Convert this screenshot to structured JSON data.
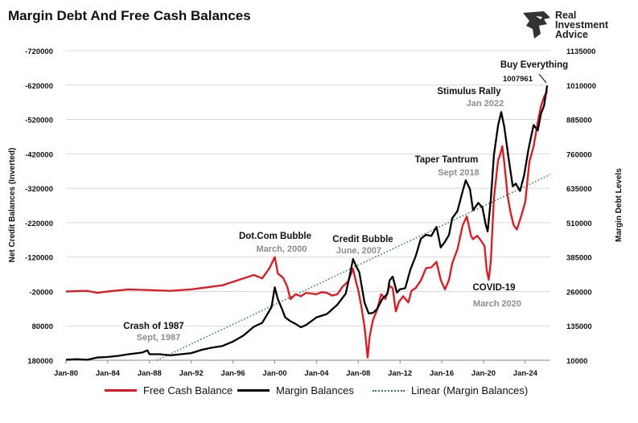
{
  "title": "Margin Debt And Free Cash Balances",
  "logo": {
    "icon": "eagle-head-icon",
    "lines": [
      "Real",
      "Investment",
      "Advice"
    ]
  },
  "colors": {
    "free_cash": "#e8141c",
    "margin": "#000000",
    "linear": "#2e7d55",
    "annotation_gray": "#8c8c8c",
    "grid": "#d9d9d9"
  },
  "chart_data": {
    "type": "line",
    "title": "Margin Debt And Free Cash Balances",
    "y_left_label": "Net Credit Balances (Inverted)",
    "y_right_label": "Margin Debt Levels",
    "y_left": {
      "min": -720000,
      "max": 180000,
      "inverted": true,
      "ticks": [
        "-720000",
        "-620000",
        "-520000",
        "-420000",
        "-320000",
        "-220000",
        "-120000",
        "-20000",
        "80000",
        "180000"
      ]
    },
    "y_right": {
      "min": 10000,
      "max": 1135000,
      "ticks": [
        "1135000",
        "1010000",
        "885000",
        "760000",
        "635000",
        "510000",
        "385000",
        "260000",
        "135000",
        "10000"
      ]
    },
    "x_ticks": [
      "Jan-80",
      "Jan-84",
      "Jan-88",
      "Jan-92",
      "Jan-96",
      "Jan-00",
      "Jan-04",
      "Jan-08",
      "Jan-12",
      "Jan-16",
      "Jan-20",
      "Jan-24"
    ],
    "x_range": [
      1980.0,
      2026.4
    ],
    "grid": true,
    "legend_position": "bottom",
    "series": [
      {
        "name": "Free Cash Balance",
        "axis": "left",
        "points": [
          [
            1980.0,
            -20000
          ],
          [
            1982.0,
            -22000
          ],
          [
            1983.0,
            -16000
          ],
          [
            1984.0,
            -20000
          ],
          [
            1986.0,
            -26000
          ],
          [
            1988.0,
            -24000
          ],
          [
            1990.0,
            -22000
          ],
          [
            1992.0,
            -26000
          ],
          [
            1993.5,
            -32000
          ],
          [
            1995.0,
            -38000
          ],
          [
            1996.0,
            -48000
          ],
          [
            1997.0,
            -58000
          ],
          [
            1998.0,
            -68000
          ],
          [
            1998.8,
            -58000
          ],
          [
            1999.5,
            -88000
          ],
          [
            2000.0,
            -120000
          ],
          [
            2000.3,
            -72000
          ],
          [
            2000.8,
            -60000
          ],
          [
            2001.2,
            -34000
          ],
          [
            2001.5,
            2000
          ],
          [
            2002.0,
            -12000
          ],
          [
            2002.5,
            -6000
          ],
          [
            2003.0,
            -16000
          ],
          [
            2003.5,
            -14000
          ],
          [
            2004.0,
            -12000
          ],
          [
            2004.5,
            -18000
          ],
          [
            2005.0,
            -16000
          ],
          [
            2005.5,
            -8000
          ],
          [
            2006.0,
            -12000
          ],
          [
            2006.5,
            -34000
          ],
          [
            2007.0,
            -48000
          ],
          [
            2007.5,
            -86000
          ],
          [
            2007.8,
            -46000
          ],
          [
            2008.0,
            -24000
          ],
          [
            2008.3,
            24000
          ],
          [
            2008.6,
            82000
          ],
          [
            2008.9,
            172000
          ],
          [
            2009.1,
            110000
          ],
          [
            2009.4,
            64000
          ],
          [
            2009.8,
            34000
          ],
          [
            2010.2,
            -12000
          ],
          [
            2010.6,
            2000
          ],
          [
            2011.0,
            -36000
          ],
          [
            2011.3,
            -30000
          ],
          [
            2011.6,
            38000
          ],
          [
            2011.9,
            10000
          ],
          [
            2012.3,
            -6000
          ],
          [
            2012.8,
            12000
          ],
          [
            2013.1,
            -22000
          ],
          [
            2013.5,
            -30000
          ],
          [
            2014.0,
            -52000
          ],
          [
            2014.5,
            -88000
          ],
          [
            2015.0,
            -90000
          ],
          [
            2015.5,
            -106000
          ],
          [
            2015.9,
            -54000
          ],
          [
            2016.3,
            -26000
          ],
          [
            2016.7,
            -54000
          ],
          [
            2017.0,
            -102000
          ],
          [
            2017.5,
            -142000
          ],
          [
            2018.0,
            -212000
          ],
          [
            2018.4,
            -238000
          ],
          [
            2018.8,
            -182000
          ],
          [
            2019.0,
            -172000
          ],
          [
            2019.4,
            -182000
          ],
          [
            2019.8,
            -166000
          ],
          [
            2020.1,
            -152000
          ],
          [
            2020.3,
            -84000
          ],
          [
            2020.5,
            -54000
          ],
          [
            2020.7,
            -108000
          ],
          [
            2021.0,
            -292000
          ],
          [
            2021.4,
            -402000
          ],
          [
            2021.6,
            -418000
          ],
          [
            2021.8,
            -442000
          ],
          [
            2022.0,
            -392000
          ],
          [
            2022.3,
            -300000
          ],
          [
            2022.6,
            -248000
          ],
          [
            2022.9,
            -212000
          ],
          [
            2023.2,
            -200000
          ],
          [
            2023.6,
            -238000
          ],
          [
            2024.0,
            -280000
          ],
          [
            2024.4,
            -398000
          ],
          [
            2024.8,
            -442000
          ],
          [
            2025.2,
            -512000
          ],
          [
            2025.5,
            -558000
          ],
          [
            2025.8,
            -586000
          ],
          [
            2026.1,
            -602000
          ]
        ]
      },
      {
        "name": "Margin Balances",
        "axis": "right",
        "points": [
          [
            1980.0,
            12000
          ],
          [
            1981.0,
            14000
          ],
          [
            1982.0,
            12000
          ],
          [
            1983.0,
            20000
          ],
          [
            1984.0,
            22000
          ],
          [
            1985.0,
            26000
          ],
          [
            1986.0,
            32000
          ],
          [
            1987.3,
            38000
          ],
          [
            1987.8,
            46000
          ],
          [
            1988.0,
            32000
          ],
          [
            1989.0,
            32000
          ],
          [
            1990.0,
            28000
          ],
          [
            1991.0,
            32000
          ],
          [
            1992.0,
            36000
          ],
          [
            1993.0,
            48000
          ],
          [
            1994.0,
            56000
          ],
          [
            1995.0,
            62000
          ],
          [
            1996.0,
            78000
          ],
          [
            1997.0,
            100000
          ],
          [
            1998.0,
            132000
          ],
          [
            1998.8,
            146000
          ],
          [
            1999.3,
            178000
          ],
          [
            1999.7,
            204000
          ],
          [
            2000.0,
            275000
          ],
          [
            2000.3,
            232000
          ],
          [
            2000.7,
            196000
          ],
          [
            2001.0,
            166000
          ],
          [
            2001.5,
            152000
          ],
          [
            2002.0,
            142000
          ],
          [
            2002.5,
            130000
          ],
          [
            2003.0,
            138000
          ],
          [
            2004.0,
            166000
          ],
          [
            2005.0,
            178000
          ],
          [
            2006.0,
            212000
          ],
          [
            2006.8,
            252000
          ],
          [
            2007.2,
            320000
          ],
          [
            2007.5,
            378000
          ],
          [
            2007.8,
            352000
          ],
          [
            2008.1,
            330000
          ],
          [
            2008.6,
            220000
          ],
          [
            2009.0,
            180000
          ],
          [
            2009.4,
            182000
          ],
          [
            2009.8,
            196000
          ],
          [
            2010.3,
            232000
          ],
          [
            2010.8,
            252000
          ],
          [
            2011.0,
            300000
          ],
          [
            2011.3,
            314000
          ],
          [
            2011.7,
            256000
          ],
          [
            2012.0,
            268000
          ],
          [
            2012.5,
            272000
          ],
          [
            2013.0,
            340000
          ],
          [
            2013.5,
            388000
          ],
          [
            2014.0,
            452000
          ],
          [
            2014.5,
            466000
          ],
          [
            2015.0,
            462000
          ],
          [
            2015.5,
            495000
          ],
          [
            2015.9,
            420000
          ],
          [
            2016.3,
            440000
          ],
          [
            2016.7,
            466000
          ],
          [
            2017.0,
            526000
          ],
          [
            2017.5,
            552000
          ],
          [
            2018.0,
            624000
          ],
          [
            2018.3,
            664000
          ],
          [
            2018.7,
            632000
          ],
          [
            2019.0,
            555000
          ],
          [
            2019.5,
            582000
          ],
          [
            2019.9,
            565000
          ],
          [
            2020.2,
            505000
          ],
          [
            2020.4,
            478000
          ],
          [
            2020.7,
            595000
          ],
          [
            2021.0,
            756000
          ],
          [
            2021.4,
            864000
          ],
          [
            2021.7,
            912000
          ],
          [
            2022.0,
            856000
          ],
          [
            2022.4,
            745000
          ],
          [
            2022.8,
            642000
          ],
          [
            2023.1,
            652000
          ],
          [
            2023.5,
            625000
          ],
          [
            2023.9,
            684000
          ],
          [
            2024.3,
            775000
          ],
          [
            2024.8,
            865000
          ],
          [
            2025.2,
            845000
          ],
          [
            2025.5,
            905000
          ],
          [
            2025.8,
            935000
          ],
          [
            2026.1,
            1007961
          ]
        ]
      },
      {
        "name": "Linear (Margin Balances)",
        "axis": "right",
        "style": "dotted",
        "points": [
          [
            1988.7,
            10000
          ],
          [
            2026.4,
            685000
          ]
        ]
      }
    ],
    "annotations": [
      {
        "title": "Crash of 1987",
        "date": "Sept, 1987"
      },
      {
        "title": "Dot.Com Bubble",
        "date": "March, 2000"
      },
      {
        "title": "Credit Bubble",
        "date": "June, 2007"
      },
      {
        "title": "Taper Tantrum",
        "date": "Sept 2018"
      },
      {
        "title": "Stimulus Rally",
        "date": "Jan 2022"
      },
      {
        "title": "COVID-19",
        "date": "March 2020"
      },
      {
        "title": "Buy Everything",
        "date": ""
      }
    ],
    "value_label": "1007961"
  }
}
